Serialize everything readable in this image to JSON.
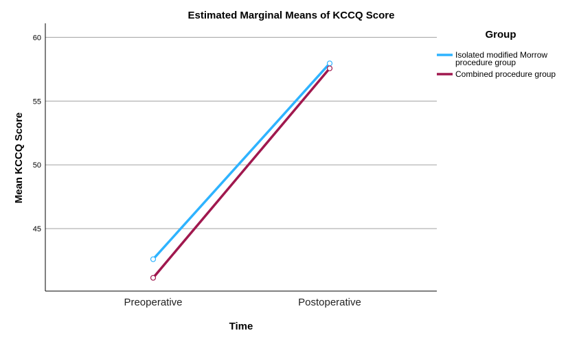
{
  "chart_data": {
    "type": "line",
    "title": "Estimated Marginal Means of KCCQ Score",
    "xlabel": "Time",
    "ylabel": "Mean KCCQ Score",
    "categories": [
      "Preoperative",
      "Postoperative"
    ],
    "ylim": [
      40.1,
      61.1
    ],
    "yticks": [
      45,
      50,
      55,
      60
    ],
    "grid": true,
    "legend": {
      "title": "Group",
      "placement": "right"
    },
    "series": [
      {
        "name": "Isolated modified Morrow procedure group",
        "name_lines": [
          "Isolated modified Morrow",
          "procedure group"
        ],
        "color": "#2eb3ff",
        "values": [
          42.6,
          57.96
        ]
      },
      {
        "name": "Combined procedure group",
        "name_lines": [
          "Combined procedure group"
        ],
        "color": "#a0184e",
        "values": [
          41.14,
          57.57
        ]
      }
    ]
  }
}
